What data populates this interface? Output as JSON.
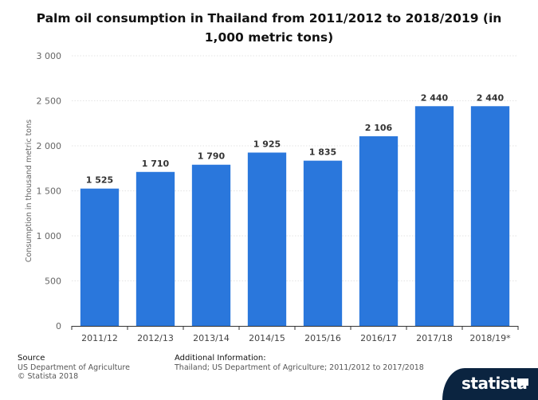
{
  "title": "Palm oil consumption in Thailand from 2011/2012 to 2018/2019 (in 1,000 metric tons)",
  "footer": {
    "source_heading": "Source",
    "source_lines": [
      "US Department of Agriculture",
      "© Statista 2018"
    ],
    "info_heading": "Additional Information:",
    "info_text": "Thailand; US Department of Agriculture; 2011/2012 to 2017/2018"
  },
  "brand": {
    "name": "statista",
    "icon": "flag-icon"
  },
  "colors": {
    "bar": "#2a77dc",
    "grid": "#e3e3e3",
    "brand_bg": "#0b2440"
  },
  "chart_data": {
    "type": "bar",
    "title": "Palm oil consumption in Thailand from 2011/2012 to 2018/2019 (in 1,000 metric tons)",
    "xlabel": "",
    "ylabel": "Consumption in thousand metric tons",
    "ylim": [
      0,
      3000
    ],
    "yticks": [
      0,
      500,
      1000,
      1500,
      2000,
      2500,
      3000
    ],
    "ytick_labels": [
      "0",
      "500",
      "1 000",
      "1 500",
      "2 000",
      "2 500",
      "3 000"
    ],
    "grid": true,
    "categories": [
      "2011/12",
      "2012/13",
      "2013/14",
      "2014/15",
      "2015/16",
      "2016/17",
      "2017/18",
      "2018/19*"
    ],
    "values": [
      1525,
      1710,
      1790,
      1925,
      1835,
      2106,
      2440,
      2440
    ],
    "value_labels": [
      "1 525",
      "1 710",
      "1 790",
      "1 925",
      "1 835",
      "2 106",
      "2 440",
      "2 440"
    ]
  }
}
